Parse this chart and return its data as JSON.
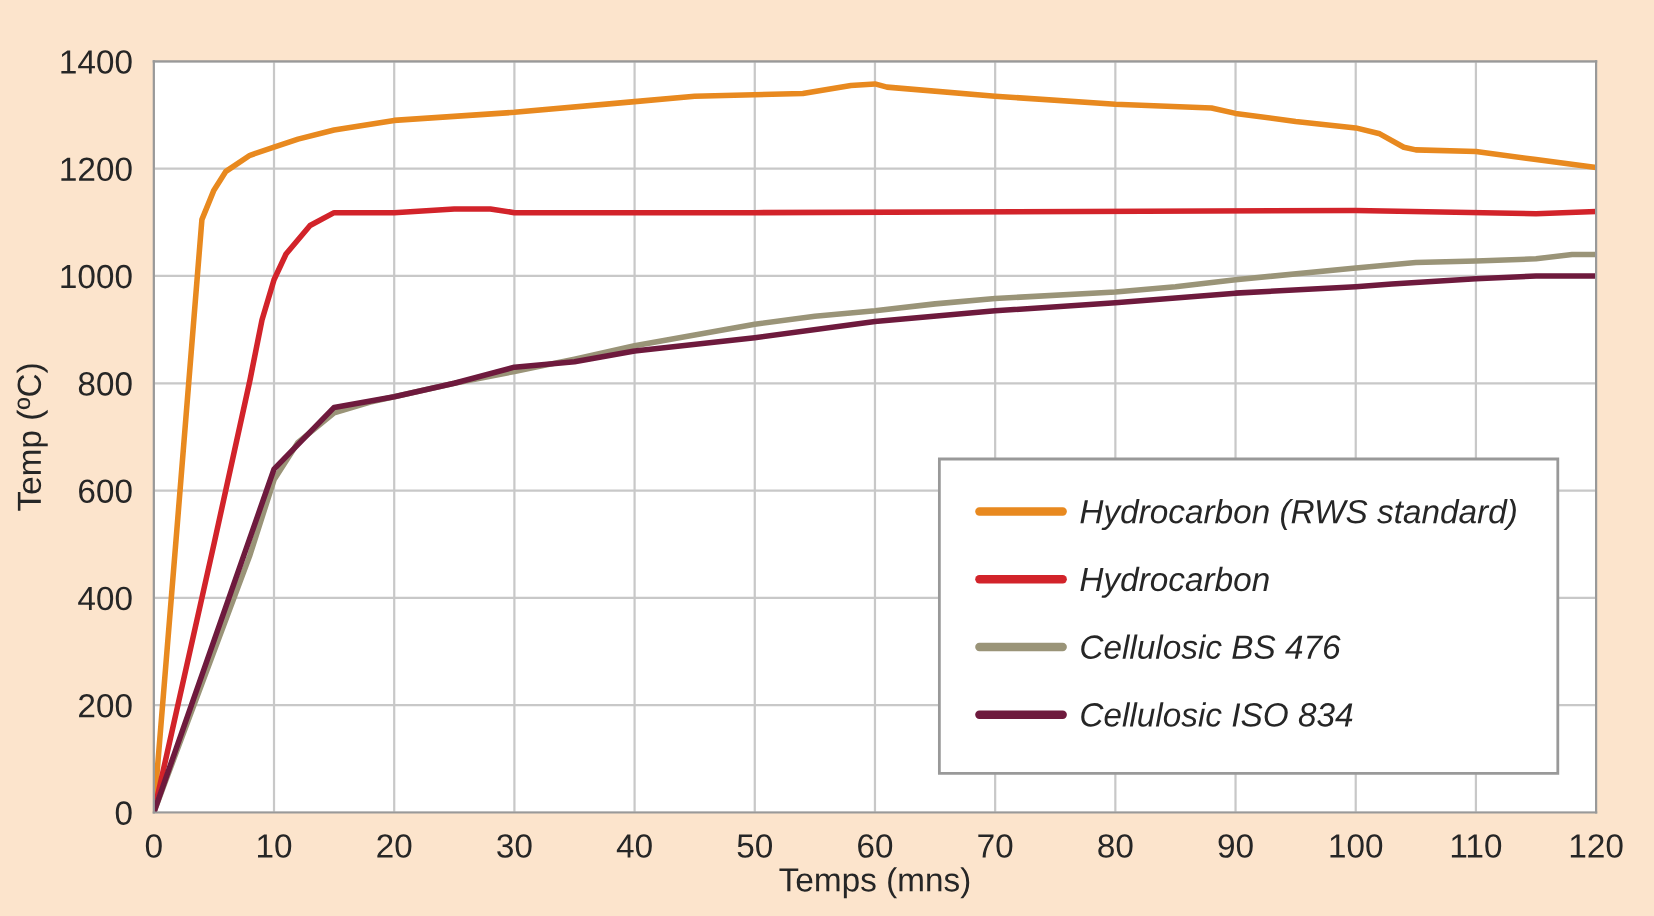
{
  "chart_data": {
    "type": "line",
    "xlabel": "Temps (mns)",
    "ylabel": "Temp (ºC)",
    "xlim": [
      0,
      120
    ],
    "ylim": [
      0,
      1400
    ],
    "xticks": [
      0,
      10,
      20,
      30,
      40,
      50,
      60,
      70,
      80,
      90,
      100,
      110,
      120
    ],
    "yticks": [
      0,
      200,
      400,
      600,
      800,
      1000,
      1200,
      1400
    ],
    "grid": true,
    "legend": "bottom right",
    "series": [
      {
        "name": "Hydrocarbon (RWS standard)",
        "color": "#e8891f",
        "x": [
          0,
          2,
          4,
          5,
          6,
          8,
          10,
          12,
          15,
          20,
          30,
          40,
          45,
          54,
          58,
          60,
          61,
          70,
          80,
          88,
          90,
          95,
          100,
          102,
          104,
          105,
          110,
          115,
          120
        ],
        "values": [
          0,
          550,
          1105,
          1160,
          1195,
          1225,
          1240,
          1255,
          1272,
          1290,
          1305,
          1325,
          1335,
          1340,
          1355,
          1358,
          1352,
          1335,
          1320,
          1313,
          1303,
          1288,
          1276,
          1265,
          1240,
          1235,
          1232,
          1217,
          1202
        ]
      },
      {
        "name": "Hydrocarbon",
        "color": "#d2232a",
        "x": [
          0,
          5,
          8,
          9,
          10,
          11,
          13,
          15,
          20,
          25,
          28,
          30,
          50,
          100,
          115,
          120
        ],
        "values": [
          0,
          500,
          806,
          918,
          993,
          1041,
          1094,
          1118,
          1118,
          1125,
          1125,
          1118,
          1118,
          1122,
          1116,
          1120
        ]
      },
      {
        "name": "Cellulosic BS 476",
        "color": "#9a9478",
        "x": [
          0,
          5,
          8,
          10,
          12,
          15,
          18,
          20,
          25,
          30,
          35,
          40,
          45,
          50,
          55,
          60,
          65,
          70,
          80,
          85,
          90,
          100,
          105,
          110,
          115,
          118,
          120
        ],
        "values": [
          0,
          300,
          480,
          620,
          690,
          745,
          765,
          775,
          800,
          822,
          845,
          870,
          890,
          910,
          925,
          935,
          948,
          958,
          970,
          980,
          993,
          1015,
          1025,
          1028,
          1032,
          1040,
          1040
        ]
      },
      {
        "name": "Cellulosic ISO 834",
        "color": "#6e1a3d",
        "x": [
          0,
          5,
          10,
          15,
          20,
          25,
          30,
          35,
          40,
          50,
          60,
          70,
          80,
          90,
          100,
          103,
          110,
          115,
          120
        ],
        "values": [
          0,
          320,
          640,
          755,
          775,
          800,
          830,
          840,
          860,
          885,
          915,
          935,
          950,
          968,
          980,
          985,
          995,
          1000,
          1000
        ]
      }
    ]
  }
}
